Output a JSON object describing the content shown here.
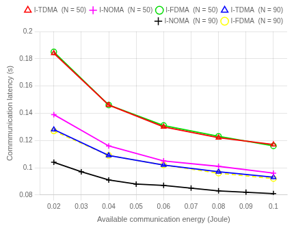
{
  "chart_data": {
    "type": "line",
    "xlabel": "Available communication energy (Joule)",
    "ylabel": "Commmunication latency (s)",
    "xlim": [
      0.015,
      0.105
    ],
    "ylim": [
      0.08,
      0.2
    ],
    "xticks": [
      0.02,
      0.03,
      0.04,
      0.05,
      0.06,
      0.07,
      0.08,
      0.09,
      0.1
    ],
    "yticks": [
      0.08,
      0.1,
      0.12,
      0.14,
      0.16,
      0.18,
      0.2
    ],
    "grid": true,
    "legend": "upper right",
    "series": [
      {
        "name": "I-TDMA  (N = 50)",
        "color": "#ff0000",
        "marker": "triangle",
        "line_style": "solid",
        "x": [
          0.02,
          0.04,
          0.06,
          0.08,
          0.1
        ],
        "values": [
          0.184,
          0.146,
          0.13,
          0.122,
          0.117
        ]
      },
      {
        "name": "I-NOMA  (N = 50)",
        "color": "#ff00ff",
        "marker": "cross",
        "line_style": "solid",
        "x": [
          0.02,
          0.04,
          0.06,
          0.08,
          0.1
        ],
        "values": [
          0.139,
          0.116,
          0.105,
          0.101,
          0.096
        ]
      },
      {
        "name": "I-FDMA  (N = 50)",
        "color": "#00dd00",
        "marker": "circle",
        "line_style": "solid",
        "x": [
          0.02,
          0.04,
          0.06,
          0.08,
          0.1
        ],
        "values": [
          0.185,
          0.146,
          0.131,
          0.123,
          0.116
        ]
      },
      {
        "name": "I-TDMA  (N = 90)",
        "color": "#0000ff",
        "marker": "triangle",
        "line_style": "solid",
        "x": [
          0.02,
          0.04,
          0.06,
          0.08,
          0.1
        ],
        "values": [
          0.128,
          0.109,
          0.102,
          0.097,
          0.093
        ]
      },
      {
        "name": "I-NOMA  (N = 90)",
        "color": "#000000",
        "marker": "cross",
        "line_style": "solid",
        "x": [
          0.02,
          0.03,
          0.04,
          0.05,
          0.06,
          0.07,
          0.08,
          0.09,
          0.1
        ],
        "values": [
          0.104,
          0.097,
          0.091,
          0.088,
          0.087,
          0.085,
          0.083,
          0.082,
          0.081
        ]
      },
      {
        "name": "I-FDMA  (N = 90)",
        "color": "#ffff00",
        "marker": "circle",
        "line_style": "dashed",
        "x": [
          0.02,
          0.04,
          0.06,
          0.08,
          0.1
        ],
        "values": [
          0.127,
          0.109,
          0.102,
          0.096,
          0.092
        ]
      }
    ]
  }
}
